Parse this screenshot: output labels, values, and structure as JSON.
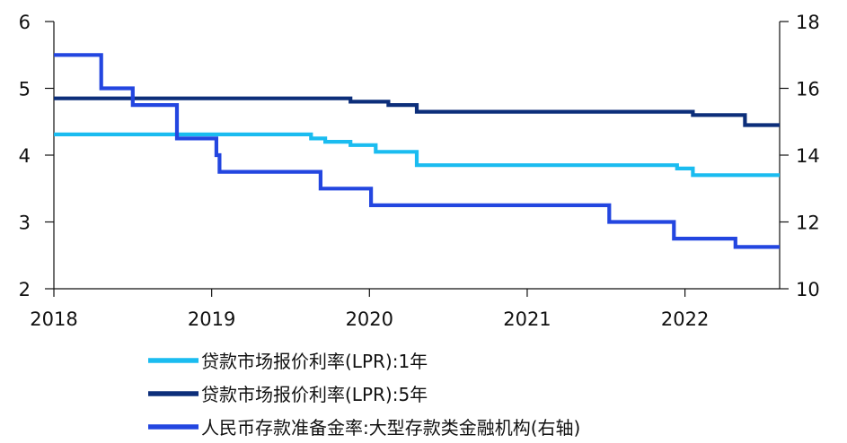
{
  "chart_data": {
    "type": "line",
    "title": "",
    "xlabel": "",
    "ylabel": "",
    "xlim": [
      2018,
      2022.6
    ],
    "xticks": [
      "2018",
      "2019",
      "2020",
      "2021",
      "2022"
    ],
    "ylim_left": [
      2,
      6
    ],
    "yticks_left": [
      "2",
      "3",
      "4",
      "5",
      "6"
    ],
    "ylim_right": [
      10,
      18
    ],
    "yticks_right": [
      "10",
      "12",
      "14",
      "16",
      "18"
    ],
    "grid": false,
    "legend_position": "bottom",
    "series": [
      {
        "name": "贷款市场报价利率(LPR):1年",
        "axis": "left",
        "color": "#1ABCF0",
        "step": true,
        "points": [
          [
            2018.0,
            4.31
          ],
          [
            2019.63,
            4.31
          ],
          [
            2019.63,
            4.25
          ],
          [
            2019.72,
            4.25
          ],
          [
            2019.72,
            4.2
          ],
          [
            2019.88,
            4.2
          ],
          [
            2019.88,
            4.15
          ],
          [
            2020.04,
            4.15
          ],
          [
            2020.04,
            4.05
          ],
          [
            2020.3,
            4.05
          ],
          [
            2020.3,
            3.85
          ],
          [
            2021.95,
            3.85
          ],
          [
            2021.95,
            3.8
          ],
          [
            2022.05,
            3.8
          ],
          [
            2022.05,
            3.7
          ],
          [
            2022.6,
            3.7
          ]
        ]
      },
      {
        "name": "贷款市场报价利率(LPR):5年",
        "axis": "left",
        "color": "#0C2E7A",
        "step": true,
        "points": [
          [
            2018.0,
            4.85
          ],
          [
            2019.88,
            4.85
          ],
          [
            2019.88,
            4.8
          ],
          [
            2020.12,
            4.8
          ],
          [
            2020.12,
            4.75
          ],
          [
            2020.3,
            4.75
          ],
          [
            2020.3,
            4.65
          ],
          [
            2022.05,
            4.65
          ],
          [
            2022.05,
            4.6
          ],
          [
            2022.38,
            4.6
          ],
          [
            2022.38,
            4.45
          ],
          [
            2022.6,
            4.45
          ]
        ]
      },
      {
        "name": "人民币存款准备金率:大型存款类金融机构(右轴)",
        "axis": "right",
        "color": "#2346E0",
        "step": true,
        "points": [
          [
            2018.0,
            17.0
          ],
          [
            2018.3,
            17.0
          ],
          [
            2018.3,
            16.0
          ],
          [
            2018.5,
            16.0
          ],
          [
            2018.5,
            15.5
          ],
          [
            2018.78,
            15.5
          ],
          [
            2018.78,
            14.5
          ],
          [
            2019.03,
            14.5
          ],
          [
            2019.03,
            14.0
          ],
          [
            2019.05,
            14.0
          ],
          [
            2019.05,
            13.5
          ],
          [
            2019.69,
            13.5
          ],
          [
            2019.69,
            13.0
          ],
          [
            2020.01,
            13.0
          ],
          [
            2020.01,
            12.5
          ],
          [
            2021.52,
            12.5
          ],
          [
            2021.52,
            12.0
          ],
          [
            2021.93,
            12.0
          ],
          [
            2021.93,
            11.5
          ],
          [
            2022.32,
            11.5
          ],
          [
            2022.32,
            11.25
          ],
          [
            2022.6,
            11.25
          ]
        ]
      }
    ]
  }
}
